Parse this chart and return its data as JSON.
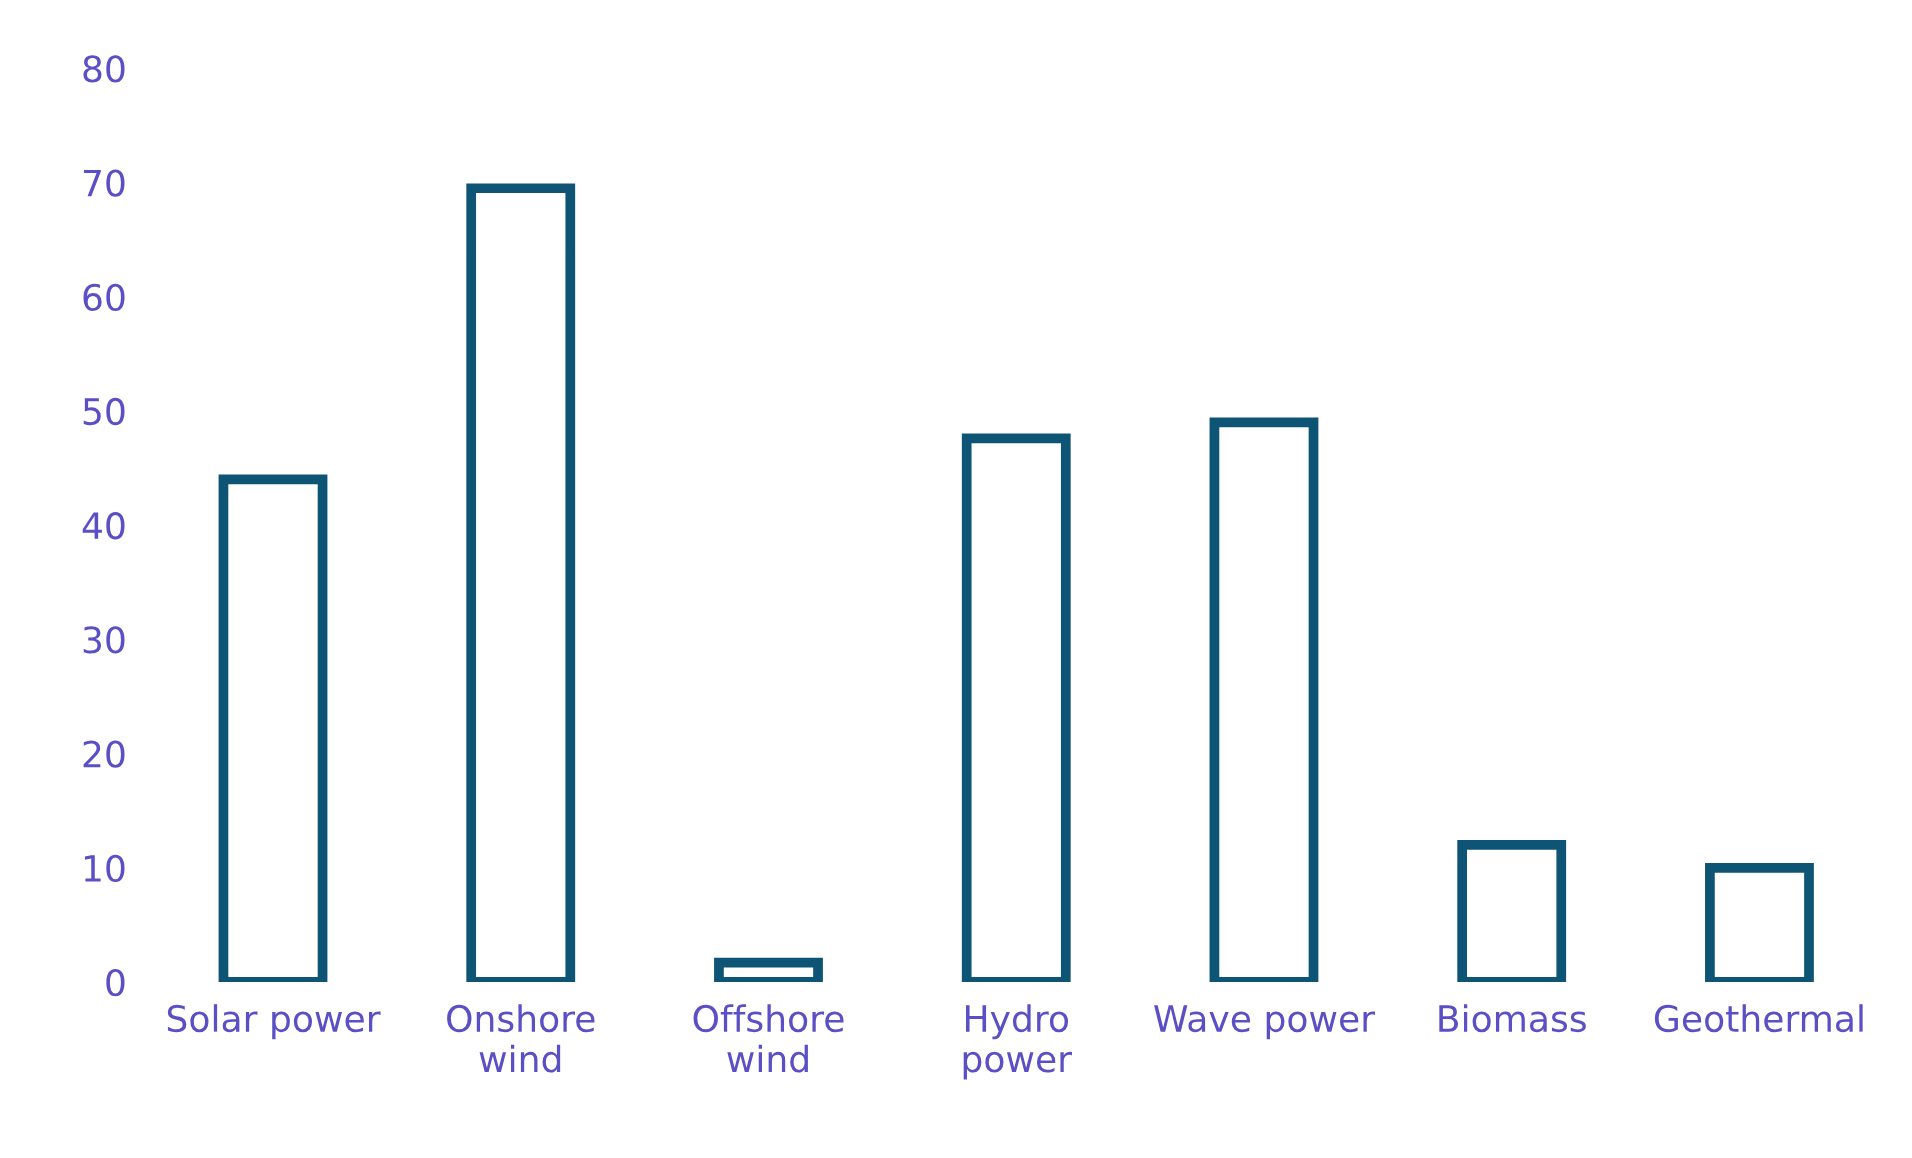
{
  "chart_data": {
    "type": "bar",
    "categories": [
      "Solar power",
      "Onshore\nwind",
      "Offshore\nwind",
      "Hydro\npower",
      "Wave power",
      "Biomass",
      "Geothermal"
    ],
    "values": [
      44,
      69.5,
      1.7,
      47.6,
      49,
      12,
      10
    ],
    "color": "#0e5474",
    "ylim": [
      0,
      80
    ],
    "yticks": [
      0,
      10,
      20,
      30,
      40,
      50,
      60,
      70,
      80
    ],
    "grid": false
  }
}
